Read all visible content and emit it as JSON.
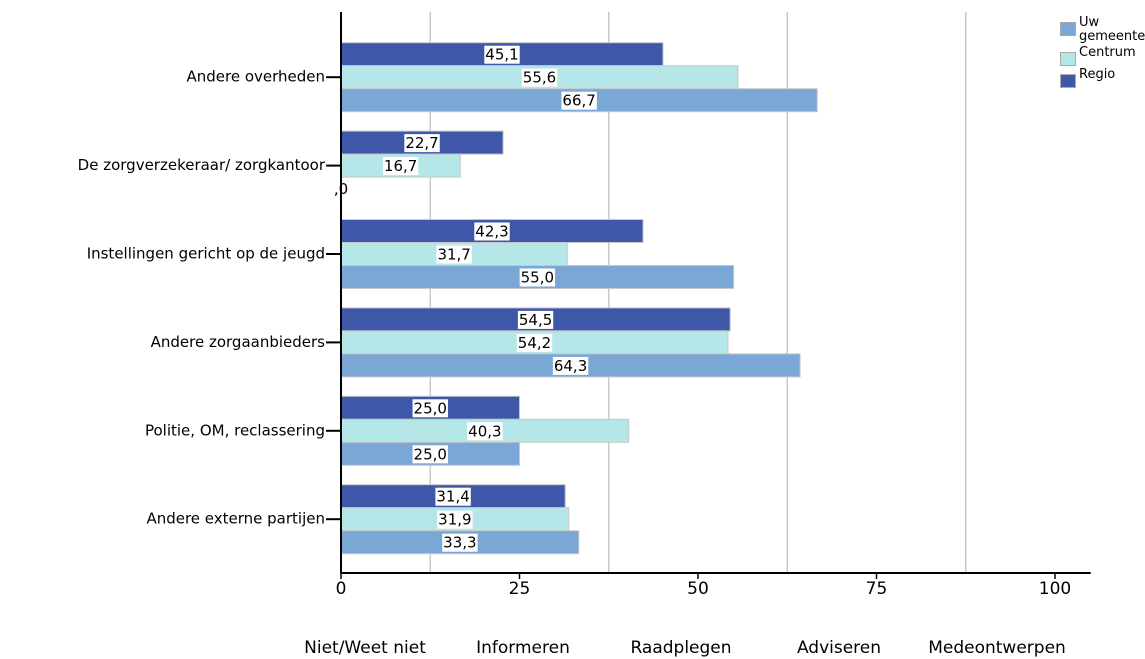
{
  "chart_data": {
    "type": "barh",
    "categories": [
      "Andere overheden",
      "De zorgverzekeraar/ zorgkantoor",
      "Instellingen gericht op de jeugd",
      "Andere zorgaanbieders",
      "Politie, OM, reclassering",
      "Andere externe partijen"
    ],
    "series": [
      {
        "name": "Regio",
        "color": "#3f57a8",
        "values": [
          45.1,
          22.7,
          42.3,
          54.5,
          25.0,
          31.4
        ],
        "value_labels": [
          "45,1",
          "22,7",
          "42,3",
          "54,5",
          "25,0",
          "31,4"
        ]
      },
      {
        "name": "Centrum",
        "color": "#b5e6e8",
        "values": [
          55.6,
          16.7,
          31.7,
          54.2,
          40.3,
          31.9
        ],
        "value_labels": [
          "55,6",
          "16,7",
          "31,7",
          "54,2",
          "40,3",
          "31,9"
        ]
      },
      {
        "name": "Uw gemeente",
        "color": "#7ba7d6",
        "values": [
          66.7,
          0,
          55.0,
          64.3,
          25.0,
          33.3
        ],
        "value_labels": [
          "66,7",
          ",0",
          "55,0",
          "64,3",
          "25,0",
          "33,3"
        ]
      }
    ],
    "legend_order": [
      2,
      1,
      0
    ],
    "xlim": [
      0,
      105
    ],
    "xticks": [
      0,
      25,
      50,
      75,
      100
    ],
    "grid_lines": [
      12.5,
      37.5,
      62.5,
      87.5
    ],
    "level_labels": [
      "Niet/Weet niet",
      "Informeren",
      "Raadplegen",
      "Adviseren",
      "Medeontwerpen"
    ],
    "legend_position": "upper right"
  }
}
